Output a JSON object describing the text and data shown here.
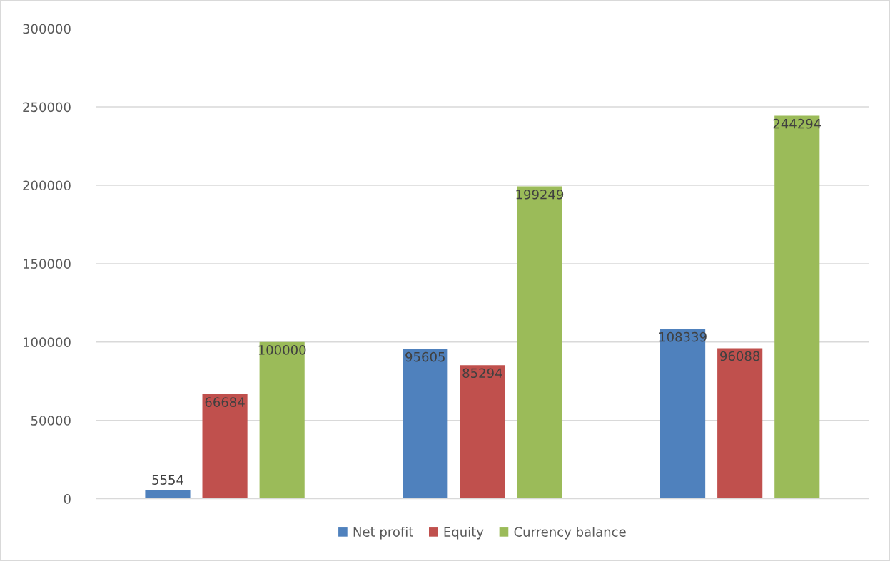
{
  "chart_data": {
    "type": "bar",
    "categories": [
      null,
      null,
      null
    ],
    "series": [
      {
        "name": "Net profit",
        "color": "#4f81bd",
        "values": [
          5554,
          95605,
          108339
        ]
      },
      {
        "name": "Equity",
        "color": "#c0504d",
        "values": [
          66684,
          85294,
          96088
        ]
      },
      {
        "name": "Currency balance",
        "color": "#9bbb59",
        "values": [
          100000,
          199249,
          244294
        ]
      }
    ],
    "ylim": [
      0,
      300000
    ],
    "yticks": [
      0,
      50000,
      100000,
      150000,
      200000,
      250000,
      300000
    ],
    "grid": "y",
    "legend": "bottom",
    "data_labels": true
  }
}
